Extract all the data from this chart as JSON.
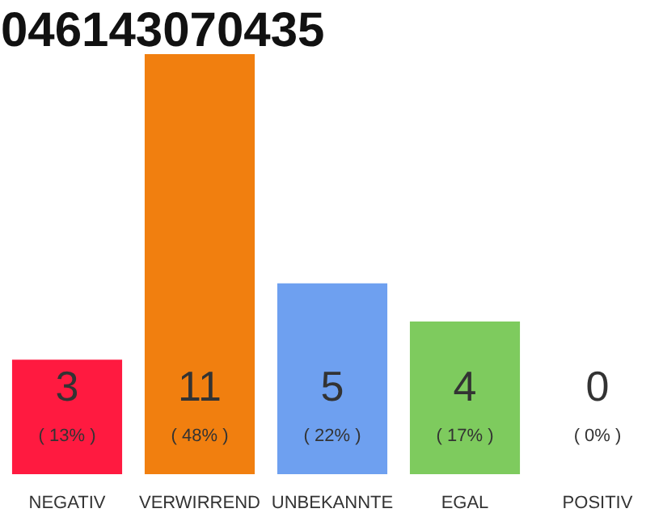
{
  "chart_data": {
    "type": "bar",
    "title": "046143070435",
    "categories": [
      "NEGATIV",
      "VERWIRREND",
      "UNBEKANNTE",
      "EGAL",
      "POSITIV"
    ],
    "values": [
      3,
      11,
      5,
      4,
      0
    ],
    "colors": [
      "#ff1a40",
      "#f17f0f",
      "#6ea0f0",
      "#7ecb5e",
      "#7ecb5e"
    ],
    "data_labels": true,
    "annotations": [
      "( 13% )",
      "( 48% )",
      "( 22% )",
      "( 17% )",
      "( 0% )"
    ]
  }
}
